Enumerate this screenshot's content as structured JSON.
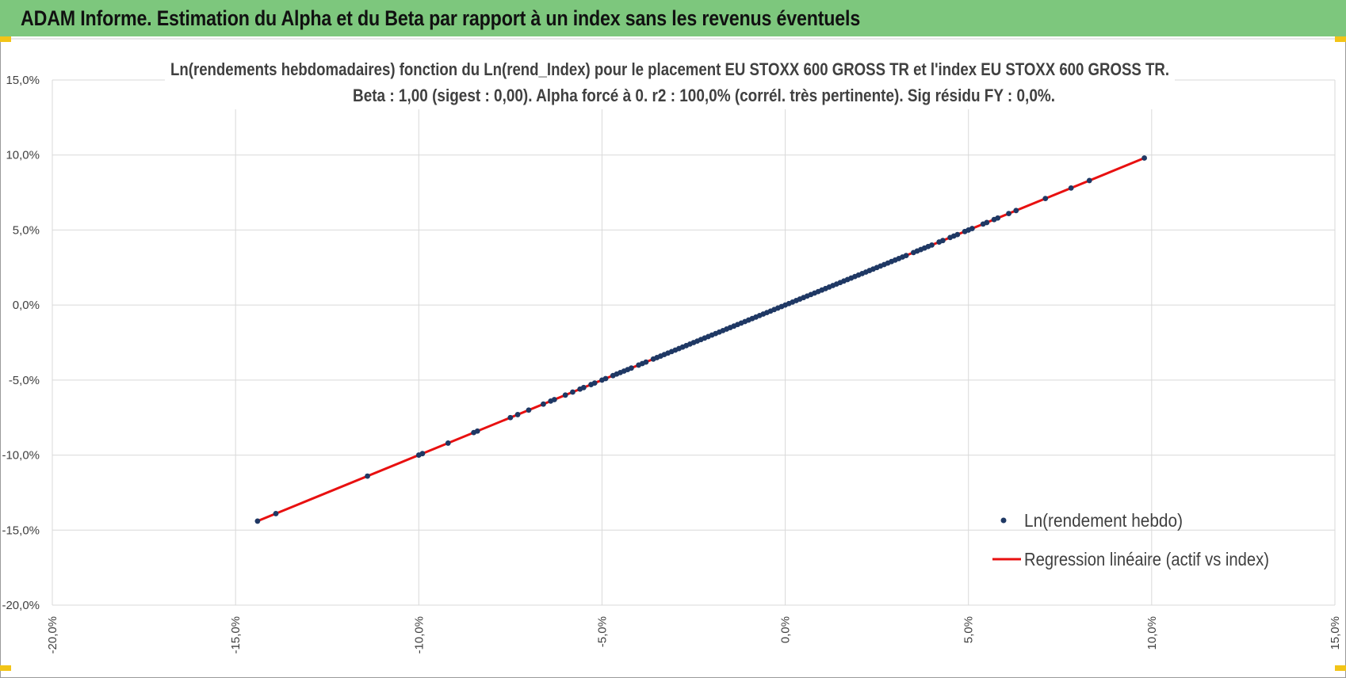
{
  "header": {
    "title": "ADAM Informe. Estimation du Alpha et du Beta par rapport à un index sans les revenus éventuels"
  },
  "colors": {
    "header_bg": "#7dc77d",
    "accent": "#f2c417",
    "points": "#1f3864",
    "regression": "#e81010",
    "grid": "#d9d9d9"
  },
  "chart_data": {
    "type": "scatter",
    "title_lines": [
      "Ln(rendements hebdomadaires) fonction du Ln(rend_Index) pour le placement EU STOXX 600 GROSS TR et l'index EU STOXX 600 GROSS TR.",
      "Beta : 1,00 (sigest : 0,00). Alpha forcé à 0. r2 : 100,0% (corrél. très pertinente). Sig résidu FY : 0,0%."
    ],
    "xlim": [
      -20,
      15
    ],
    "ylim": [
      -20,
      15
    ],
    "x_ticks": [
      -20,
      -15,
      -10,
      -5,
      0,
      5,
      10,
      15
    ],
    "y_ticks": [
      -20,
      -15,
      -10,
      -5,
      0,
      5,
      10,
      15
    ],
    "x_tick_labels": [
      "-20,0%",
      "-15,0%",
      "-10,0%",
      "-5,0%",
      "0,0%",
      "5,0%",
      "10,0%",
      "15,0%"
    ],
    "y_tick_labels": [
      "-20,0%",
      "-15,0%",
      "-10,0%",
      "-5,0%",
      "0,0%",
      "5,0%",
      "10,0%",
      "15,0%"
    ],
    "grid": true,
    "legend_position": "bottom-right",
    "series": [
      {
        "name": "Ln(rendement hebdo)",
        "kind": "scatter",
        "points": [
          [
            -14.4,
            -14.4
          ],
          [
            -13.9,
            -13.9
          ],
          [
            -11.4,
            -11.4
          ],
          [
            -10.0,
            -10.0
          ],
          [
            -9.9,
            -9.9
          ],
          [
            -9.2,
            -9.2
          ],
          [
            -8.5,
            -8.5
          ],
          [
            -8.4,
            -8.4
          ],
          [
            -7.5,
            -7.5
          ],
          [
            -7.3,
            -7.3
          ],
          [
            -7.0,
            -7.0
          ],
          [
            -6.6,
            -6.6
          ],
          [
            -6.4,
            -6.4
          ],
          [
            -6.3,
            -6.3
          ],
          [
            -6.0,
            -6.0
          ],
          [
            -5.8,
            -5.8
          ],
          [
            -5.6,
            -5.6
          ],
          [
            -5.5,
            -5.5
          ],
          [
            -5.3,
            -5.3
          ],
          [
            -5.2,
            -5.2
          ],
          [
            -5.0,
            -5.0
          ],
          [
            -4.9,
            -4.9
          ],
          [
            -4.7,
            -4.7
          ],
          [
            -4.6,
            -4.6
          ],
          [
            -4.5,
            -4.5
          ],
          [
            -4.4,
            -4.4
          ],
          [
            -4.3,
            -4.3
          ],
          [
            -4.2,
            -4.2
          ],
          [
            -4.0,
            -4.0
          ],
          [
            -3.9,
            -3.9
          ],
          [
            -3.8,
            -3.8
          ],
          [
            -3.6,
            -3.6
          ],
          [
            -3.5,
            -3.5
          ],
          [
            -3.4,
            -3.4
          ],
          [
            -3.3,
            -3.3
          ],
          [
            -3.2,
            -3.2
          ],
          [
            -3.1,
            -3.1
          ],
          [
            -3.0,
            -3.0
          ],
          [
            -2.9,
            -2.9
          ],
          [
            -2.8,
            -2.8
          ],
          [
            -2.7,
            -2.7
          ],
          [
            -2.6,
            -2.6
          ],
          [
            -2.5,
            -2.5
          ],
          [
            -2.4,
            -2.4
          ],
          [
            -2.3,
            -2.3
          ],
          [
            -2.2,
            -2.2
          ],
          [
            -2.1,
            -2.1
          ],
          [
            -2.0,
            -2.0
          ],
          [
            -1.9,
            -1.9
          ],
          [
            -1.8,
            -1.8
          ],
          [
            -1.7,
            -1.7
          ],
          [
            -1.6,
            -1.6
          ],
          [
            -1.5,
            -1.5
          ],
          [
            -1.4,
            -1.4
          ],
          [
            -1.3,
            -1.3
          ],
          [
            -1.2,
            -1.2
          ],
          [
            -1.1,
            -1.1
          ],
          [
            -1.0,
            -1.0
          ],
          [
            -0.9,
            -0.9
          ],
          [
            -0.8,
            -0.8
          ],
          [
            -0.7,
            -0.7
          ],
          [
            -0.6,
            -0.6
          ],
          [
            -0.5,
            -0.5
          ],
          [
            -0.4,
            -0.4
          ],
          [
            -0.3,
            -0.3
          ],
          [
            -0.2,
            -0.2
          ],
          [
            -0.1,
            -0.1
          ],
          [
            0.0,
            0.0
          ],
          [
            0.1,
            0.1
          ],
          [
            0.2,
            0.2
          ],
          [
            0.3,
            0.3
          ],
          [
            0.4,
            0.4
          ],
          [
            0.5,
            0.5
          ],
          [
            0.6,
            0.6
          ],
          [
            0.7,
            0.7
          ],
          [
            0.8,
            0.8
          ],
          [
            0.9,
            0.9
          ],
          [
            1.0,
            1.0
          ],
          [
            1.1,
            1.1
          ],
          [
            1.2,
            1.2
          ],
          [
            1.3,
            1.3
          ],
          [
            1.4,
            1.4
          ],
          [
            1.5,
            1.5
          ],
          [
            1.6,
            1.6
          ],
          [
            1.7,
            1.7
          ],
          [
            1.8,
            1.8
          ],
          [
            1.9,
            1.9
          ],
          [
            2.0,
            2.0
          ],
          [
            2.1,
            2.1
          ],
          [
            2.2,
            2.2
          ],
          [
            2.3,
            2.3
          ],
          [
            2.4,
            2.4
          ],
          [
            2.5,
            2.5
          ],
          [
            2.6,
            2.6
          ],
          [
            2.7,
            2.7
          ],
          [
            2.8,
            2.8
          ],
          [
            2.9,
            2.9
          ],
          [
            3.0,
            3.0
          ],
          [
            3.1,
            3.1
          ],
          [
            3.2,
            3.2
          ],
          [
            3.3,
            3.3
          ],
          [
            3.5,
            3.5
          ],
          [
            3.6,
            3.6
          ],
          [
            3.7,
            3.7
          ],
          [
            3.8,
            3.8
          ],
          [
            3.9,
            3.9
          ],
          [
            4.0,
            4.0
          ],
          [
            4.2,
            4.2
          ],
          [
            4.3,
            4.3
          ],
          [
            4.5,
            4.5
          ],
          [
            4.6,
            4.6
          ],
          [
            4.7,
            4.7
          ],
          [
            4.9,
            4.9
          ],
          [
            5.0,
            5.0
          ],
          [
            5.1,
            5.1
          ],
          [
            5.4,
            5.4
          ],
          [
            5.5,
            5.5
          ],
          [
            5.7,
            5.7
          ],
          [
            5.8,
            5.8
          ],
          [
            6.1,
            6.1
          ],
          [
            6.3,
            6.3
          ],
          [
            7.1,
            7.1
          ],
          [
            7.8,
            7.8
          ],
          [
            8.3,
            8.3
          ],
          [
            9.8,
            9.8
          ]
        ]
      },
      {
        "name": "Regression linéaire (actif vs index)",
        "kind": "line",
        "points": [
          [
            -14.4,
            -14.4
          ],
          [
            9.8,
            9.8
          ]
        ]
      }
    ]
  }
}
